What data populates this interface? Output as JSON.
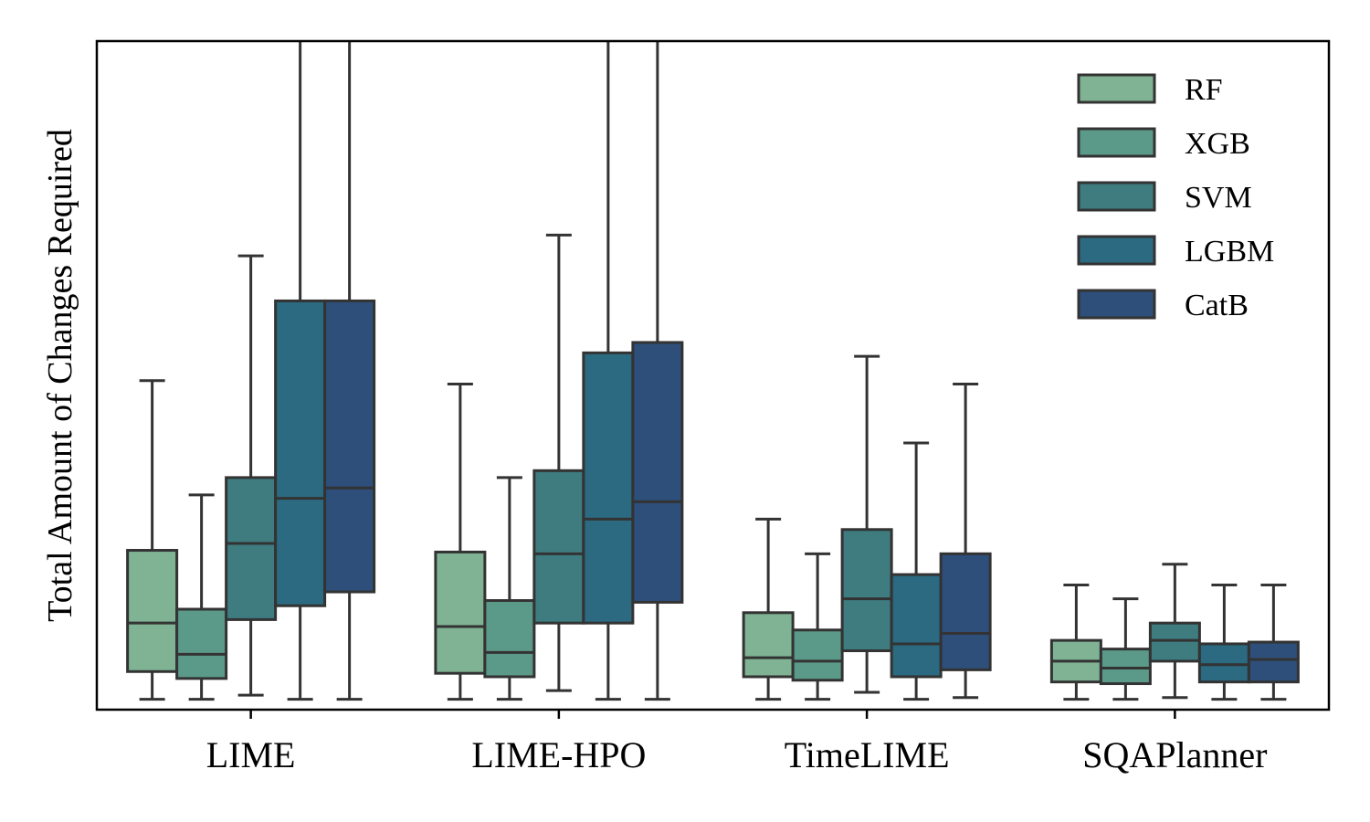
{
  "chart_data": {
    "type": "box",
    "title": "",
    "xlabel": "",
    "ylabel": "Total Amount of Changes Required",
    "ylim": [
      -0.3,
      19
    ],
    "y_ticks_shown": false,
    "grid": false,
    "legend_position": "top-right",
    "categories": [
      "LIME",
      "LIME-HPO",
      "TimeLIME",
      "SQAPlanner"
    ],
    "series": [
      {
        "name": "RF",
        "color": "#7fb393",
        "boxes": [
          {
            "whisker_low": 0,
            "q1": 0.8,
            "median": 2.2,
            "q3": 4.3,
            "whisker_high": 9.2
          },
          {
            "whisker_low": 0,
            "q1": 0.75,
            "median": 2.1,
            "q3": 4.25,
            "whisker_high": 9.1
          },
          {
            "whisker_low": 0,
            "q1": 0.65,
            "median": 1.2,
            "q3": 2.5,
            "whisker_high": 5.2
          },
          {
            "whisker_low": 0,
            "q1": 0.5,
            "median": 1.1,
            "q3": 1.7,
            "whisker_high": 3.3
          }
        ]
      },
      {
        "name": "XGB",
        "color": "#5b9a89",
        "boxes": [
          {
            "whisker_low": 0,
            "q1": 0.6,
            "median": 1.3,
            "q3": 2.6,
            "whisker_high": 5.9
          },
          {
            "whisker_low": 0,
            "q1": 0.65,
            "median": 1.35,
            "q3": 2.85,
            "whisker_high": 6.4
          },
          {
            "whisker_low": 0,
            "q1": 0.55,
            "median": 1.1,
            "q3": 2.0,
            "whisker_high": 4.2
          },
          {
            "whisker_low": 0,
            "q1": 0.45,
            "median": 0.9,
            "q3": 1.45,
            "whisker_high": 2.9
          }
        ]
      },
      {
        "name": "SVM",
        "color": "#3e7c80",
        "boxes": [
          {
            "whisker_low": 0.12,
            "q1": 2.3,
            "median": 4.5,
            "q3": 6.4,
            "whisker_high": 12.8
          },
          {
            "whisker_low": 0.25,
            "q1": 2.2,
            "median": 4.2,
            "q3": 6.6,
            "whisker_high": 13.4
          },
          {
            "whisker_low": 0.2,
            "q1": 1.4,
            "median": 2.9,
            "q3": 4.9,
            "whisker_high": 9.9
          },
          {
            "whisker_low": 0.05,
            "q1": 1.1,
            "median": 1.7,
            "q3": 2.2,
            "whisker_high": 3.9
          }
        ]
      },
      {
        "name": "LGBM",
        "color": "#2b6a80",
        "boxes": [
          {
            "whisker_low": 0,
            "q1": 2.7,
            "median": 5.8,
            "q3": 11.5,
            "whisker_high": 19
          },
          {
            "whisker_low": 0,
            "q1": 2.2,
            "median": 5.2,
            "q3": 10.0,
            "whisker_high": 19
          },
          {
            "whisker_low": 0,
            "q1": 0.65,
            "median": 1.6,
            "q3": 3.6,
            "whisker_high": 7.4
          },
          {
            "whisker_low": 0,
            "q1": 0.5,
            "median": 1.0,
            "q3": 1.6,
            "whisker_high": 3.3
          }
        ]
      },
      {
        "name": "CatB",
        "color": "#2d4f7a",
        "boxes": [
          {
            "whisker_low": 0,
            "q1": 3.1,
            "median": 6.1,
            "q3": 11.5,
            "whisker_high": 19
          },
          {
            "whisker_low": 0,
            "q1": 2.8,
            "median": 5.7,
            "q3": 10.3,
            "whisker_high": 19
          },
          {
            "whisker_low": 0.05,
            "q1": 0.85,
            "median": 1.9,
            "q3": 4.2,
            "whisker_high": 9.1
          },
          {
            "whisker_low": 0,
            "q1": 0.5,
            "median": 1.15,
            "q3": 1.65,
            "whisker_high": 3.3
          }
        ]
      }
    ]
  }
}
